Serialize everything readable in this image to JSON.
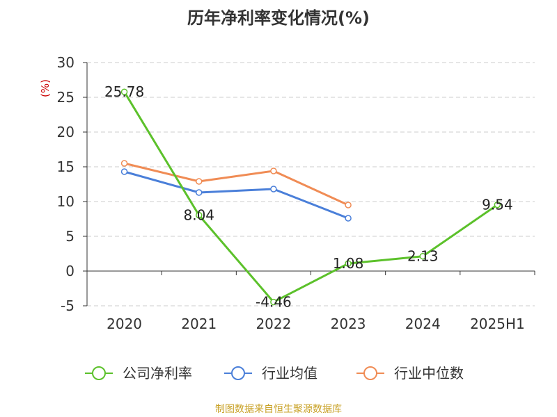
{
  "chart_data": {
    "type": "line",
    "title": "历年净利率变化情况(%)",
    "ylabel": "(%)",
    "xlabel": "",
    "categories": [
      "2020",
      "2021",
      "2022",
      "2023",
      "2024",
      "2025H1"
    ],
    "ylim": [
      -5,
      30
    ],
    "yticks": [
      "30",
      "25",
      "20",
      "15",
      "10",
      "5",
      "0",
      "-5"
    ],
    "grid": true,
    "legend_position": "bottom",
    "series": [
      {
        "name": "公司净利率",
        "color": "#5cc12b",
        "values": [
          25.78,
          8.04,
          -4.46,
          1.08,
          2.13,
          9.54
        ],
        "labels": [
          "25.78",
          "8.04",
          "-4.46",
          "1.08",
          "2.13",
          "9.54"
        ]
      },
      {
        "name": "行业均值",
        "color": "#4a7fd9",
        "values": [
          14.3,
          11.3,
          11.8,
          7.6,
          null,
          null
        ]
      },
      {
        "name": "行业中位数",
        "color": "#f08c55",
        "values": [
          15.5,
          12.9,
          14.4,
          9.5,
          null,
          null
        ]
      }
    ]
  },
  "footer": {
    "source": "制图数据来自恒生聚源数据库"
  },
  "colors": {
    "ylabel": "#cc0000",
    "axis": "#333333",
    "grid": "#cccccc"
  }
}
